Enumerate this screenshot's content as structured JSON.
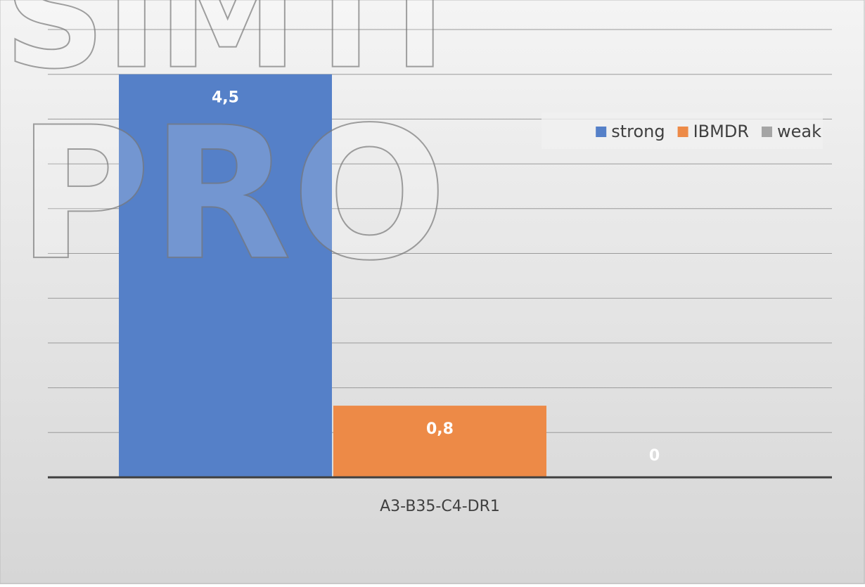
{
  "chart_data": {
    "type": "bar",
    "categories": [
      "A3-B35-C4-DR1"
    ],
    "series": [
      {
        "name": "strong",
        "color": "#5580c8",
        "values": [
          4.5
        ],
        "value_labels": [
          "4,5"
        ]
      },
      {
        "name": "IBMDR",
        "color": "#ed8a47",
        "values": [
          0.8
        ],
        "value_labels": [
          "0,8"
        ]
      },
      {
        "name": "weak",
        "color": "#a5a5a5",
        "values": [
          0
        ],
        "value_labels": [
          "0"
        ]
      }
    ],
    "ylim": [
      0,
      5
    ],
    "yticks": [
      0,
      0.5,
      1,
      1.5,
      2,
      2.5,
      3,
      3.5,
      4,
      4.5,
      5
    ],
    "grid": true,
    "legend": "top-right",
    "watermark": [
      "SIMTI",
      "PRO"
    ]
  }
}
